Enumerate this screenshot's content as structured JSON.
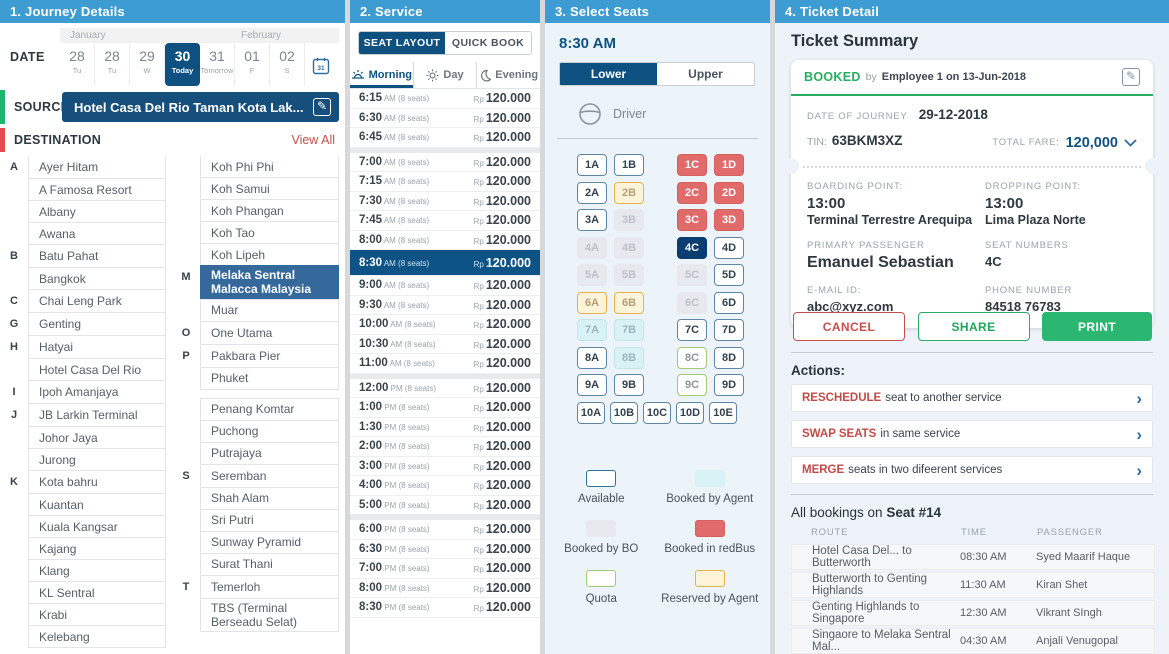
{
  "journey": {
    "title": "1. Journey Details",
    "date_label": "DATE",
    "months": [
      "January",
      "February"
    ],
    "days": [
      {
        "num": "28",
        "sub": "Tu"
      },
      {
        "num": "28",
        "sub": "Tu"
      },
      {
        "num": "29",
        "sub": "W"
      },
      {
        "num": "30",
        "sub": "Today",
        "selected": true
      },
      {
        "num": "31",
        "sub": "Tomorrow"
      },
      {
        "num": "01",
        "sub": "F"
      },
      {
        "num": "02",
        "sub": "S"
      }
    ],
    "calendar_day": "31",
    "source_label": "SOURCE",
    "source_value": "Hotel Casa Del Rio Taman Kota Lak...",
    "destination_label": "DESTINATION",
    "view_all_label": "View All",
    "destinations_col1": [
      {
        "letter": "A",
        "name": "Ayer Hitam"
      },
      {
        "name": "A Famosa Resort"
      },
      {
        "name": "Albany"
      },
      {
        "name": "Awana"
      },
      {
        "letter": "B",
        "name": "Batu Pahat"
      },
      {
        "name": "Bangkok"
      },
      {
        "letter": "C",
        "name": "Chai Leng Park"
      },
      {
        "letter": "G",
        "name": "Genting"
      },
      {
        "letter": "H",
        "name": "Hatyai"
      },
      {
        "name": "Hotel Casa Del Rio"
      },
      {
        "letter": "I",
        "name": "Ipoh Amanjaya"
      },
      {
        "letter": "J",
        "name": "JB Larkin Terminal"
      },
      {
        "name": "Johor Jaya"
      },
      {
        "name": "Jurong"
      },
      {
        "letter": "K",
        "name": "Kota bahru"
      },
      {
        "name": "Kuantan"
      },
      {
        "name": "Kuala Kangsar"
      },
      {
        "name": "Kajang"
      },
      {
        "name": "Klang"
      },
      {
        "name": "KL Sentral"
      },
      {
        "name": "Krabi"
      },
      {
        "name": "Kelebang"
      }
    ],
    "destinations_col2": [
      {
        "name": "Koh Phi Phi"
      },
      {
        "name": "Koh Samui"
      },
      {
        "name": "Koh Phangan"
      },
      {
        "name": "Koh Tao"
      },
      {
        "name": "Koh Lipeh"
      },
      {
        "letter": "M",
        "name": "Melaka Sentral Malacca Malaysia",
        "selected": true
      },
      {
        "name": "Muar"
      },
      {
        "letter": "O",
        "name": "One Utama"
      },
      {
        "letter": "P",
        "name": "Pakbara Pier"
      },
      {
        "name": "Phuket"
      },
      {
        "name": "Penang Komtar",
        "gap_before": true
      },
      {
        "name": "Puchong"
      },
      {
        "name": "Putrajaya"
      },
      {
        "letter": "S",
        "name": "Seremban"
      },
      {
        "name": "Shah Alam"
      },
      {
        "name": "Sri Putri"
      },
      {
        "name": "Sunway Pyramid"
      },
      {
        "name": "Surat Thani"
      },
      {
        "letter": "T",
        "name": "Temerloh"
      },
      {
        "name": "TBS (Terminal Berseadu Selat)"
      }
    ]
  },
  "service": {
    "title": "2. Service",
    "tabs": [
      {
        "label": "SEAT LAYOUT",
        "active": true
      },
      {
        "label": "QUICK BOOK",
        "active": false
      }
    ],
    "filters": [
      {
        "label": "Morning",
        "active": true
      },
      {
        "label": "Day",
        "active": false
      },
      {
        "label": "Evening",
        "active": false
      }
    ],
    "currency": "Rp",
    "groups": [
      {
        "rows": [
          {
            "time": "6:15",
            "period": "AM",
            "seats": "(8 seats)",
            "price": "120.000"
          },
          {
            "time": "6:30",
            "period": "AM",
            "seats": "(8 seats)",
            "price": "120.000"
          },
          {
            "time": "6:45",
            "period": "AM",
            "seats": "(8 seats)",
            "price": "120.000"
          }
        ]
      },
      {
        "rows": [
          {
            "time": "7:00",
            "period": "AM",
            "seats": "(8 seats)",
            "price": "120.000"
          },
          {
            "time": "7:15",
            "period": "AM",
            "seats": "(8 seats)",
            "price": "120.000"
          },
          {
            "time": "7:30",
            "period": "AM",
            "seats": "(8 seats)",
            "price": "120.000"
          },
          {
            "time": "7:45",
            "period": "AM",
            "seats": "(8 seats)",
            "price": "120.000"
          },
          {
            "time": "8:00",
            "period": "AM",
            "seats": "(8 seats)",
            "price": "120.000"
          },
          {
            "time": "8:30",
            "period": "AM",
            "seats": "(8 seats)",
            "price": "120.000",
            "selected": true
          },
          {
            "time": "9:00",
            "period": "AM",
            "seats": "(8 seats)",
            "price": "120.000"
          },
          {
            "time": "9:30",
            "period": "AM",
            "seats": "(8 seats)",
            "price": "120.000"
          },
          {
            "time": "10:00",
            "period": "AM",
            "seats": "(8 seats)",
            "price": "120.000"
          },
          {
            "time": "10:30",
            "period": "AM",
            "seats": "(8 seats)",
            "price": "120.000"
          },
          {
            "time": "11:00",
            "period": "AM",
            "seats": "(8 seats)",
            "price": "120.000"
          }
        ]
      },
      {
        "rows": [
          {
            "time": "12:00",
            "period": "PM",
            "seats": "(8 seats)",
            "price": "120.000"
          },
          {
            "time": "1:00",
            "period": "PM",
            "seats": "(8 seats)",
            "price": "120.000"
          },
          {
            "time": "1:30",
            "period": "PM",
            "seats": "(8 seats)",
            "price": "120.000"
          },
          {
            "time": "2:00",
            "period": "PM",
            "seats": "(8 seats)",
            "price": "120.000"
          },
          {
            "time": "3:00",
            "period": "PM",
            "seats": "(8 seats)",
            "price": "120.000"
          },
          {
            "time": "4:00",
            "period": "PM",
            "seats": "(8 seats)",
            "price": "120.000"
          },
          {
            "time": "5:00",
            "period": "PM",
            "seats": "(8 seats)",
            "price": "120.000"
          }
        ]
      },
      {
        "rows": [
          {
            "time": "6:00",
            "period": "PM",
            "seats": "(8 seats)",
            "price": "120.000"
          },
          {
            "time": "6:30",
            "period": "PM",
            "seats": "(8 seats)",
            "price": "120.000"
          },
          {
            "time": "7:00",
            "period": "PM",
            "seats": "(8 seats)",
            "price": "120.000"
          },
          {
            "time": "8:00",
            "period": "PM",
            "seats": "(8 seats)",
            "price": "120.000"
          },
          {
            "time": "8:30",
            "period": "PM",
            "seats": "(8 seats)",
            "price": "120.000"
          }
        ]
      }
    ]
  },
  "seats": {
    "title": "3. Select Seats",
    "time": "8:30 AM",
    "deck_tabs": [
      {
        "label": "Lower",
        "active": true
      },
      {
        "label": "Upper",
        "active": false
      }
    ],
    "driver_label": "Driver",
    "grid": [
      {
        "cells": [
          {
            "label": "1A",
            "status": "available"
          },
          {
            "label": "1B",
            "status": "available"
          },
          {
            "label": "1C",
            "status": "redbus"
          },
          {
            "label": "1D",
            "status": "redbus"
          }
        ]
      },
      {
        "cells": [
          {
            "label": "2A",
            "status": "available"
          },
          {
            "label": "2B",
            "status": "reserved"
          },
          {
            "label": "2C",
            "status": "redbus"
          },
          {
            "label": "2D",
            "status": "redbus"
          }
        ]
      },
      {
        "cells": [
          {
            "label": "3A",
            "status": "available"
          },
          {
            "label": "3B",
            "status": "bo"
          },
          {
            "label": "3C",
            "status": "redbus"
          },
          {
            "label": "3D",
            "status": "redbus"
          }
        ]
      },
      {
        "cells": [
          {
            "label": "4A",
            "status": "bo"
          },
          {
            "label": "4B",
            "status": "bo"
          },
          {
            "label": "4C",
            "status": "selected"
          },
          {
            "label": "4D",
            "status": "available"
          }
        ]
      },
      {
        "cells": [
          {
            "label": "5A",
            "status": "bo"
          },
          {
            "label": "5B",
            "status": "bo"
          },
          {
            "label": "5C",
            "status": "bo"
          },
          {
            "label": "5D",
            "status": "available"
          }
        ]
      },
      {
        "cells": [
          {
            "label": "6A",
            "status": "reserved"
          },
          {
            "label": "6B",
            "status": "reserved"
          },
          {
            "label": "6C",
            "status": "bo"
          },
          {
            "label": "6D",
            "status": "available"
          }
        ]
      },
      {
        "cells": [
          {
            "label": "7A",
            "status": "agent"
          },
          {
            "label": "7B",
            "status": "agent"
          },
          {
            "label": "7C",
            "status": "available"
          },
          {
            "label": "7D",
            "status": "available"
          }
        ]
      },
      {
        "cells": [
          {
            "label": "8A",
            "status": "available"
          },
          {
            "label": "8B",
            "status": "agent"
          },
          {
            "label": "8C",
            "status": "quota"
          },
          {
            "label": "8D",
            "status": "available"
          }
        ]
      },
      {
        "cells": [
          {
            "label": "9A",
            "status": "available"
          },
          {
            "label": "9B",
            "status": "available"
          },
          {
            "label": "9C",
            "status": "quota"
          },
          {
            "label": "9D",
            "status": "available"
          }
        ]
      },
      {
        "full": true,
        "cells": [
          {
            "label": "10A",
            "status": "available"
          },
          {
            "label": "10B",
            "status": "available"
          },
          {
            "label": "10C",
            "status": "available"
          },
          {
            "label": "10D",
            "status": "available"
          },
          {
            "label": "10E",
            "status": "available"
          }
        ]
      }
    ],
    "legend": [
      {
        "label": "Available",
        "status": "available"
      },
      {
        "label": "Booked by Agent",
        "status": "agent"
      },
      {
        "label": "Booked by BO",
        "status": "bo"
      },
      {
        "label": "Booked in redBus",
        "status": "redbus"
      },
      {
        "label": "Quota",
        "status": "quota"
      },
      {
        "label": "Reserved by Agent",
        "status": "reserved"
      }
    ],
    "status_colors": {
      "available_border": "#5d87a6",
      "selected": "#0b3e70",
      "redbus": "#e16a6a",
      "agent": "#d9f2f6",
      "bo": "#e8e9ee",
      "quota_border": "#a3ca73",
      "reserved_bg": "#fdf3d8",
      "reserved_border": "#e5b24b"
    }
  },
  "ticket": {
    "title": "4. Ticket Detail",
    "summary_title": "Ticket Summary",
    "status": {
      "badge": "BOOKED",
      "by": "by",
      "agent": "Employee 1 on 13-Jun-2018"
    },
    "doj_label": "DATE OF JOURNEY",
    "doj_value": "29-12-2018",
    "tin_label": "TIN:",
    "tin_value": "63BKM3XZ",
    "fare_label": "TOTAL FARE:",
    "fare_value": "120,000",
    "boarding": {
      "label": "BOARDING POINT:",
      "time": "13:00",
      "place": "Terminal Terrestre Arequipa"
    },
    "dropping": {
      "label": "DROPPING POINT:",
      "time": "13:00",
      "place": "Lima Plaza Norte"
    },
    "passenger": {
      "label": "PRIMARY PASSENGER",
      "value": "Emanuel Sebastian"
    },
    "seat_numbers": {
      "label": "SEAT NUMBERS",
      "value": "4C"
    },
    "email": {
      "label": "E-MAIL ID:",
      "value": "abc@xyz.com"
    },
    "phone": {
      "label": "PHONE NUMBER",
      "value": "84518 76783"
    },
    "buttons": [
      {
        "label": "CANCEL",
        "style": "danger"
      },
      {
        "label": "SHARE",
        "style": "ogreen"
      },
      {
        "label": "PRINT",
        "style": "green"
      }
    ],
    "actions_title": "Actions:",
    "actions": [
      {
        "keyword": "RESCHEDULE",
        "rest": "seat to another service"
      },
      {
        "keyword": "SWAP SEATS",
        "rest": "in same service"
      },
      {
        "keyword": "MERGE",
        "rest": "seats in two difeerent services"
      }
    ],
    "bookings_title_prefix": "All bookings on ",
    "bookings_title_seat": "Seat #14",
    "bookings": {
      "columns": [
        "ROUTE",
        "TIME",
        "PASSENGER"
      ],
      "rows": [
        [
          "Hotel Casa Del... to Butterworth",
          "08:30 AM",
          "Syed Maarif Haque"
        ],
        [
          "Butterworth to Genting Highlands",
          "11:30 AM",
          "Kiran Shet"
        ],
        [
          "Genting Highlands to Singapore",
          "12:30 AM",
          "Vikrant SIngh"
        ],
        [
          "Singaore to Melaka Sentral Mal...",
          "04:30 AM",
          "Anjali Venugopal"
        ]
      ]
    }
  },
  "colors": {
    "header": "#3d9cd2",
    "navy": "#0e5181",
    "accent_red": "#c0504d",
    "green": "#27ae60"
  }
}
